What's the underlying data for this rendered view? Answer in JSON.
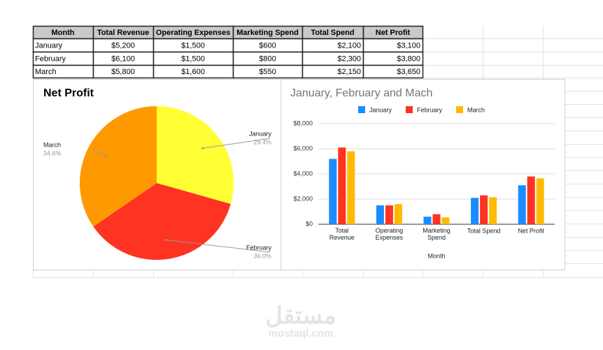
{
  "table": {
    "columns": [
      "Month",
      "Total Revenue",
      "Operating Expenses",
      "Marketing Spend",
      "Total Spend",
      "Net Profit"
    ],
    "rows": [
      [
        "January",
        "$5,200",
        "$1,500",
        "$600",
        "$2,100",
        "$3,100"
      ],
      [
        "February",
        "$6,100",
        "$1,500",
        "$800",
        "$2,300",
        "$3,800"
      ],
      [
        "March",
        "$5,800",
        "$1,600",
        "$550",
        "$2,150",
        "$3,650"
      ]
    ]
  },
  "chart_data": [
    {
      "type": "pie",
      "title": "Net Profit",
      "categories": [
        "January",
        "February",
        "March"
      ],
      "values": [
        29.4,
        36.0,
        34.6
      ],
      "value_labels": [
        "29.4%",
        "36.0%",
        "34.6%"
      ],
      "colors": [
        "#ffff33",
        "#ff3322",
        "#ff9900"
      ]
    },
    {
      "type": "bar",
      "title": "January, February and Mach",
      "x_label": "Month",
      "categories": [
        "Total Revenue",
        "Operating Expenses",
        "Marketing Spend",
        "Total Spend",
        "Net Profit"
      ],
      "series": [
        {
          "name": "January",
          "color": "#1a8cff",
          "values": [
            5200,
            1500,
            600,
            2100,
            3100
          ]
        },
        {
          "name": "February",
          "color": "#ff3322",
          "values": [
            6100,
            1500,
            800,
            2300,
            3800
          ]
        },
        {
          "name": "March",
          "color": "#ffbb00",
          "values": [
            5800,
            1600,
            550,
            2150,
            3650
          ]
        }
      ],
      "ylim": [
        0,
        8000
      ],
      "yticks": [
        {
          "value": 0,
          "label": "$0"
        },
        {
          "value": 2000,
          "label": "$2,000"
        },
        {
          "value": 4000,
          "label": "$4,000"
        },
        {
          "value": 6000,
          "label": "$6,000"
        },
        {
          "value": 8000,
          "label": "$8,000"
        }
      ],
      "grid": true,
      "legend": "top"
    }
  ],
  "watermark": {
    "arabic": "مستقل",
    "latin": "mostaql.com"
  }
}
